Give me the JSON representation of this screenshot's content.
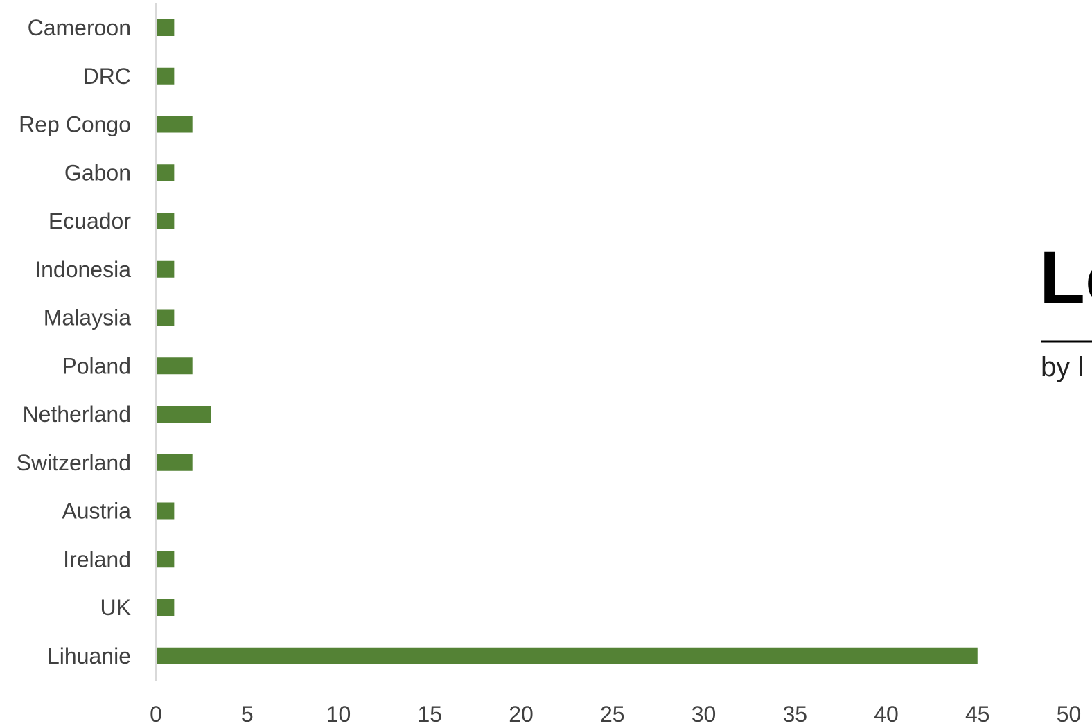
{
  "chart_data": {
    "type": "bar",
    "orientation": "horizontal",
    "title": "",
    "xlabel": "",
    "ylabel": "",
    "categories": [
      "Cameroon",
      "DRC",
      "Rep Congo",
      "Gabon",
      "Ecuador",
      "Indonesia",
      "Malaysia",
      "Poland",
      "Netherland",
      "Switzerland",
      "Austria",
      "Ireland",
      "UK",
      "Lihuanie"
    ],
    "values": [
      1,
      1,
      2,
      1,
      1,
      1,
      1,
      2,
      3,
      2,
      1,
      1,
      1,
      45
    ],
    "xlim": [
      0,
      50
    ],
    "xticks": [
      0,
      5,
      10,
      15,
      20,
      25,
      30,
      35,
      40,
      45,
      50
    ],
    "grid": false,
    "legend": "none",
    "bar_color": "#548235"
  },
  "logo": {
    "text_main": "Lo",
    "text_sub": "by l"
  }
}
